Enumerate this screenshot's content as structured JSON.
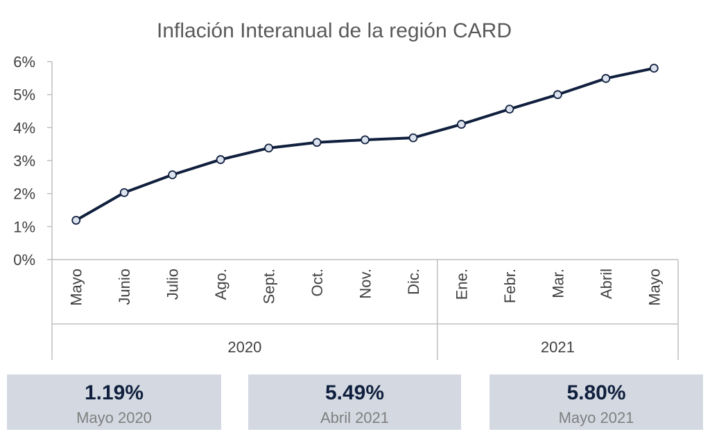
{
  "chart_data": {
    "type": "line",
    "title": "Inflación Interanual de la región CARD",
    "categories": [
      "Mayo",
      "Junio",
      "Julio",
      "Ago.",
      "Sept.",
      "Oct.",
      "Nov.",
      "Dic.",
      "Ene.",
      "Febr.",
      "Mar.",
      "Abril",
      "Mayo"
    ],
    "groups": [
      {
        "label": "2020",
        "categories": 8
      },
      {
        "label": "2021",
        "categories": 5
      }
    ],
    "series": [
      {
        "values": [
          1.19,
          2.03,
          2.57,
          3.03,
          3.38,
          3.55,
          3.63,
          3.69,
          4.1,
          4.56,
          5.0,
          5.49,
          5.8
        ]
      }
    ],
    "ylim": [
      0,
      6
    ],
    "yticks": [
      0,
      1,
      2,
      3,
      4,
      5,
      6
    ],
    "ytick_labels": [
      "0%",
      "1%",
      "2%",
      "3%",
      "4%",
      "5%",
      "6%"
    ],
    "xlabel": "",
    "ylabel": "",
    "grid": false,
    "colors": {
      "line": "#0f1f3d",
      "marker_fill": "#dde3ee",
      "axis": "#bfbfbf"
    }
  },
  "stats": [
    {
      "value": "1.19%",
      "caption": "Mayo 2020"
    },
    {
      "value": "5.49%",
      "caption": "Abril 2021"
    },
    {
      "value": "5.80%",
      "caption": "Mayo 2021"
    }
  ]
}
